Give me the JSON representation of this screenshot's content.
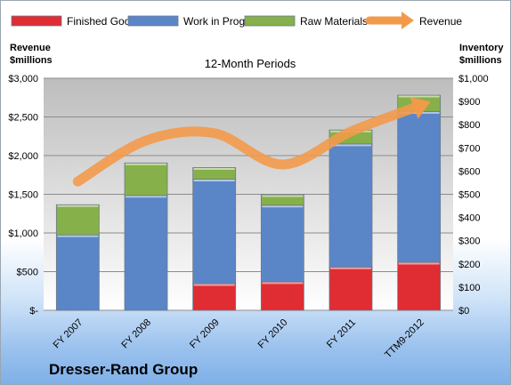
{
  "company_name": "Dresser-Rand Group",
  "chart_data": {
    "type": "bar",
    "title": "12-Month Periods",
    "categories": [
      "FY 2007",
      "FY 2008",
      "FY 2009",
      "FY 2010",
      "FY 2011",
      "TTM9-2012"
    ],
    "left_axis": {
      "label_line1": "Revenue",
      "label_line2": "$millions",
      "ylim": [
        0,
        3000
      ],
      "ticks": [
        0,
        500,
        1000,
        1500,
        2000,
        2500,
        3000
      ],
      "tick_labels": [
        "$-",
        "$500",
        "$1,000",
        "$1,500",
        "$2,000",
        "$2,500",
        "$3,000"
      ]
    },
    "right_axis": {
      "label_line1": "Inventory",
      "label_line2": "$millions",
      "ylim": [
        0,
        1000
      ],
      "ticks": [
        0,
        100,
        200,
        300,
        400,
        500,
        600,
        700,
        800,
        900,
        1000
      ],
      "tick_labels": [
        "$0",
        "$100",
        "$200",
        "$300",
        "$400",
        "$500",
        "$600",
        "$700",
        "$800",
        "$900",
        "$1,000"
      ]
    },
    "stacked_series": [
      {
        "name": "Finished Goods",
        "color": "#e02c33",
        "axis": "right",
        "values": [
          0,
          0,
          115,
          123,
          187,
          207
        ]
      },
      {
        "name": "Work in Progress",
        "color": "#5a86c8",
        "axis": "right",
        "values": [
          325,
          495,
          450,
          330,
          530,
          650
        ]
      },
      {
        "name": "Raw Materials",
        "color": "#86b04a",
        "axis": "right",
        "values": [
          130,
          140,
          50,
          45,
          60,
          70
        ]
      }
    ],
    "line_series": {
      "name": "Revenue",
      "color": "#f39a4a",
      "axis": "left",
      "values": [
        1665,
        2195,
        2290,
        1885,
        2310,
        2640
      ]
    },
    "grid": true,
    "legend": "top"
  }
}
